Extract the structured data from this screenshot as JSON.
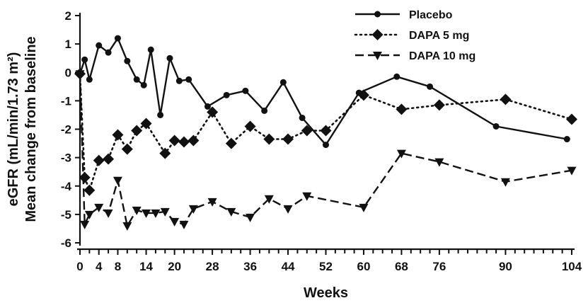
{
  "chart_data": {
    "type": "line",
    "title": "",
    "xlabel": "Weeks",
    "ylabel_lines": [
      "eGFR (mL/min/1.73 m²)",
      "Mean change from baseline"
    ],
    "xlim": [
      0,
      104
    ],
    "ylim": [
      -6,
      2
    ],
    "x_ticks": [
      0,
      2,
      4,
      6,
      8,
      10,
      12,
      14,
      16,
      18,
      20,
      22,
      24,
      26,
      28,
      30,
      32,
      34,
      36,
      38,
      40,
      42,
      44,
      46,
      48,
      50,
      52,
      54,
      56,
      58,
      60,
      62,
      64,
      66,
      68,
      70,
      72,
      74,
      76,
      78,
      80,
      82,
      84,
      86,
      88,
      90,
      92,
      94,
      96,
      98,
      100,
      102,
      104
    ],
    "x_tick_labels": [
      0,
      4,
      8,
      14,
      20,
      28,
      36,
      44,
      52,
      60,
      68,
      76,
      90,
      104
    ],
    "y_ticks": [
      2,
      1,
      0,
      -1,
      -2,
      -3,
      -4,
      -5,
      -6
    ],
    "grid": false,
    "legend_position": "top-right",
    "series": [
      {
        "name": "Placebo",
        "line_style": "solid",
        "marker": "circle",
        "color": "#111111",
        "points": [
          [
            0,
            -0.05
          ],
          [
            1,
            0.45
          ],
          [
            2,
            -0.25
          ],
          [
            4,
            0.95
          ],
          [
            6,
            0.7
          ],
          [
            8,
            1.2
          ],
          [
            10,
            0.4
          ],
          [
            12,
            -0.25
          ],
          [
            13.5,
            -0.45
          ],
          [
            15,
            0.8
          ],
          [
            17,
            -1.5
          ],
          [
            19,
            0.5
          ],
          [
            21,
            -0.3
          ],
          [
            23,
            -0.25
          ],
          [
            27,
            -1.2
          ],
          [
            31,
            -0.8
          ],
          [
            35,
            -0.65
          ],
          [
            39,
            -1.35
          ],
          [
            43,
            -0.35
          ],
          [
            47,
            -1.6
          ],
          [
            52,
            -2.55
          ],
          [
            59,
            -0.72
          ],
          [
            67,
            -0.15
          ],
          [
            74,
            -0.5
          ],
          [
            88,
            -1.9
          ],
          [
            103,
            -2.35
          ]
        ]
      },
      {
        "name": "DAPA 5 mg",
        "line_style": "dotted",
        "marker": "diamond",
        "color": "#111111",
        "points": [
          [
            0,
            -0.05
          ],
          [
            1,
            -3.7
          ],
          [
            2,
            -4.15
          ],
          [
            4,
            -3.1
          ],
          [
            6,
            -3.05
          ],
          [
            8,
            -2.2
          ],
          [
            10,
            -2.7
          ],
          [
            12,
            -2.05
          ],
          [
            14,
            -1.8
          ],
          [
            18,
            -2.85
          ],
          [
            20,
            -2.4
          ],
          [
            22,
            -2.45
          ],
          [
            24,
            -2.4
          ],
          [
            28,
            -1.4
          ],
          [
            32,
            -2.5
          ],
          [
            36,
            -1.9
          ],
          [
            40,
            -2.35
          ],
          [
            44,
            -2.35
          ],
          [
            48,
            -2.05
          ],
          [
            52,
            -2.05
          ],
          [
            60,
            -0.8
          ],
          [
            68,
            -1.3
          ],
          [
            76,
            -1.15
          ],
          [
            90,
            -0.95
          ],
          [
            104,
            -1.65
          ]
        ]
      },
      {
        "name": "DAPA 10 mg",
        "line_style": "dashed",
        "marker": "triangle-down",
        "color": "#111111",
        "points": [
          [
            0,
            -0.05
          ],
          [
            1,
            -5.35
          ],
          [
            2,
            -5.0
          ],
          [
            4,
            -4.75
          ],
          [
            6,
            -4.95
          ],
          [
            8,
            -3.8
          ],
          [
            10,
            -5.4
          ],
          [
            12,
            -4.85
          ],
          [
            14,
            -4.95
          ],
          [
            16,
            -4.95
          ],
          [
            18,
            -4.9
          ],
          [
            20,
            -5.25
          ],
          [
            22,
            -5.35
          ],
          [
            24,
            -4.8
          ],
          [
            28,
            -4.55
          ],
          [
            32,
            -4.9
          ],
          [
            36,
            -5.1
          ],
          [
            40,
            -4.45
          ],
          [
            44,
            -4.8
          ],
          [
            48,
            -4.35
          ],
          [
            60,
            -4.75
          ],
          [
            68,
            -2.85
          ],
          [
            76,
            -3.15
          ],
          [
            90,
            -3.85
          ],
          [
            104,
            -3.45
          ]
        ]
      }
    ]
  }
}
